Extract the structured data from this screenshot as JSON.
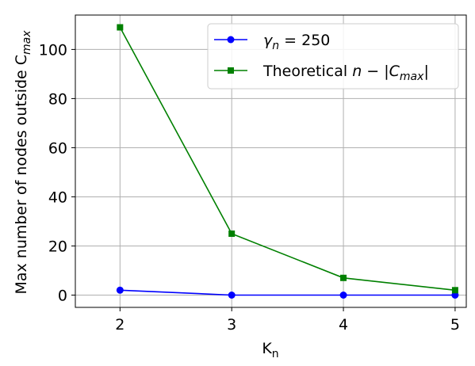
{
  "chart_data": {
    "type": "line",
    "x": [
      2,
      3,
      4,
      5
    ],
    "xlabel": "K_n",
    "ylabel": "Max number of nodes outside C_max",
    "xlim": [
      1.6,
      5.1
    ],
    "ylim": [
      -5,
      114
    ],
    "xticks": [
      "2",
      "3",
      "4",
      "5"
    ],
    "yticks": [
      "0",
      "20",
      "40",
      "60",
      "80",
      "100"
    ],
    "grid": true,
    "legend_position": "top-right",
    "series": [
      {
        "name": "γ_n = 250",
        "values": [
          2,
          0,
          0,
          0
        ],
        "color": "#0000ff",
        "marker": "circle"
      },
      {
        "name": "Theoretical n − |C_max|",
        "values": [
          109,
          25,
          7,
          2
        ],
        "color": "#008000",
        "marker": "square"
      }
    ]
  }
}
